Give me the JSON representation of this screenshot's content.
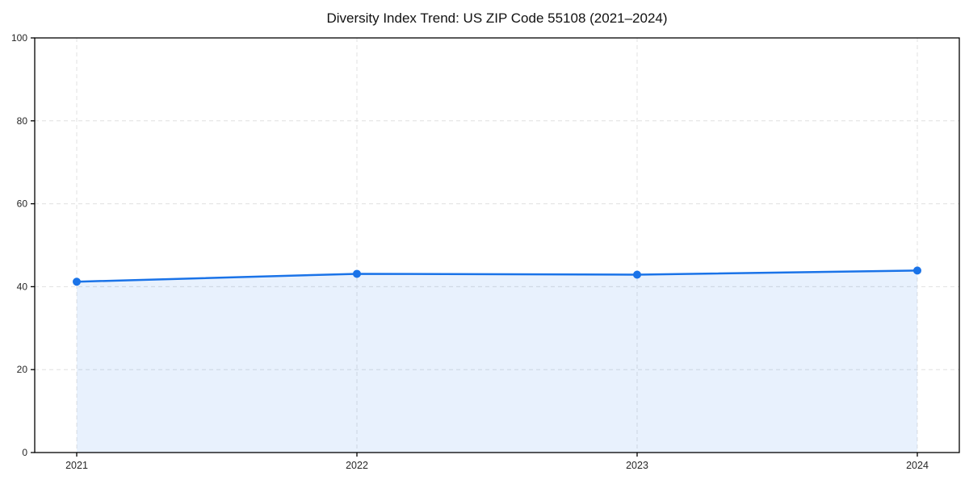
{
  "chart_data": {
    "type": "line",
    "title": "Diversity Index Trend: US ZIP Code 55108 (2021–2024)",
    "categories": [
      "2021",
      "2022",
      "2023",
      "2024"
    ],
    "values": [
      41.2,
      43.1,
      42.9,
      43.9
    ],
    "xlabel": "",
    "ylabel": "",
    "ylim": [
      0,
      100
    ],
    "yticks": [
      0,
      20,
      40,
      60,
      80,
      100
    ],
    "grid": "dashed-both-axes",
    "legend": "none",
    "area_fill": true,
    "line_color": "#1a73e8",
    "marker_color": "#1a73e8",
    "fill_color": "#1a73e8",
    "fill_opacity": 0.1,
    "grid_color": "#e0e0e0",
    "axis_color": "#000000",
    "tick_label_color": "#262626",
    "background_color": "#ffffff"
  }
}
